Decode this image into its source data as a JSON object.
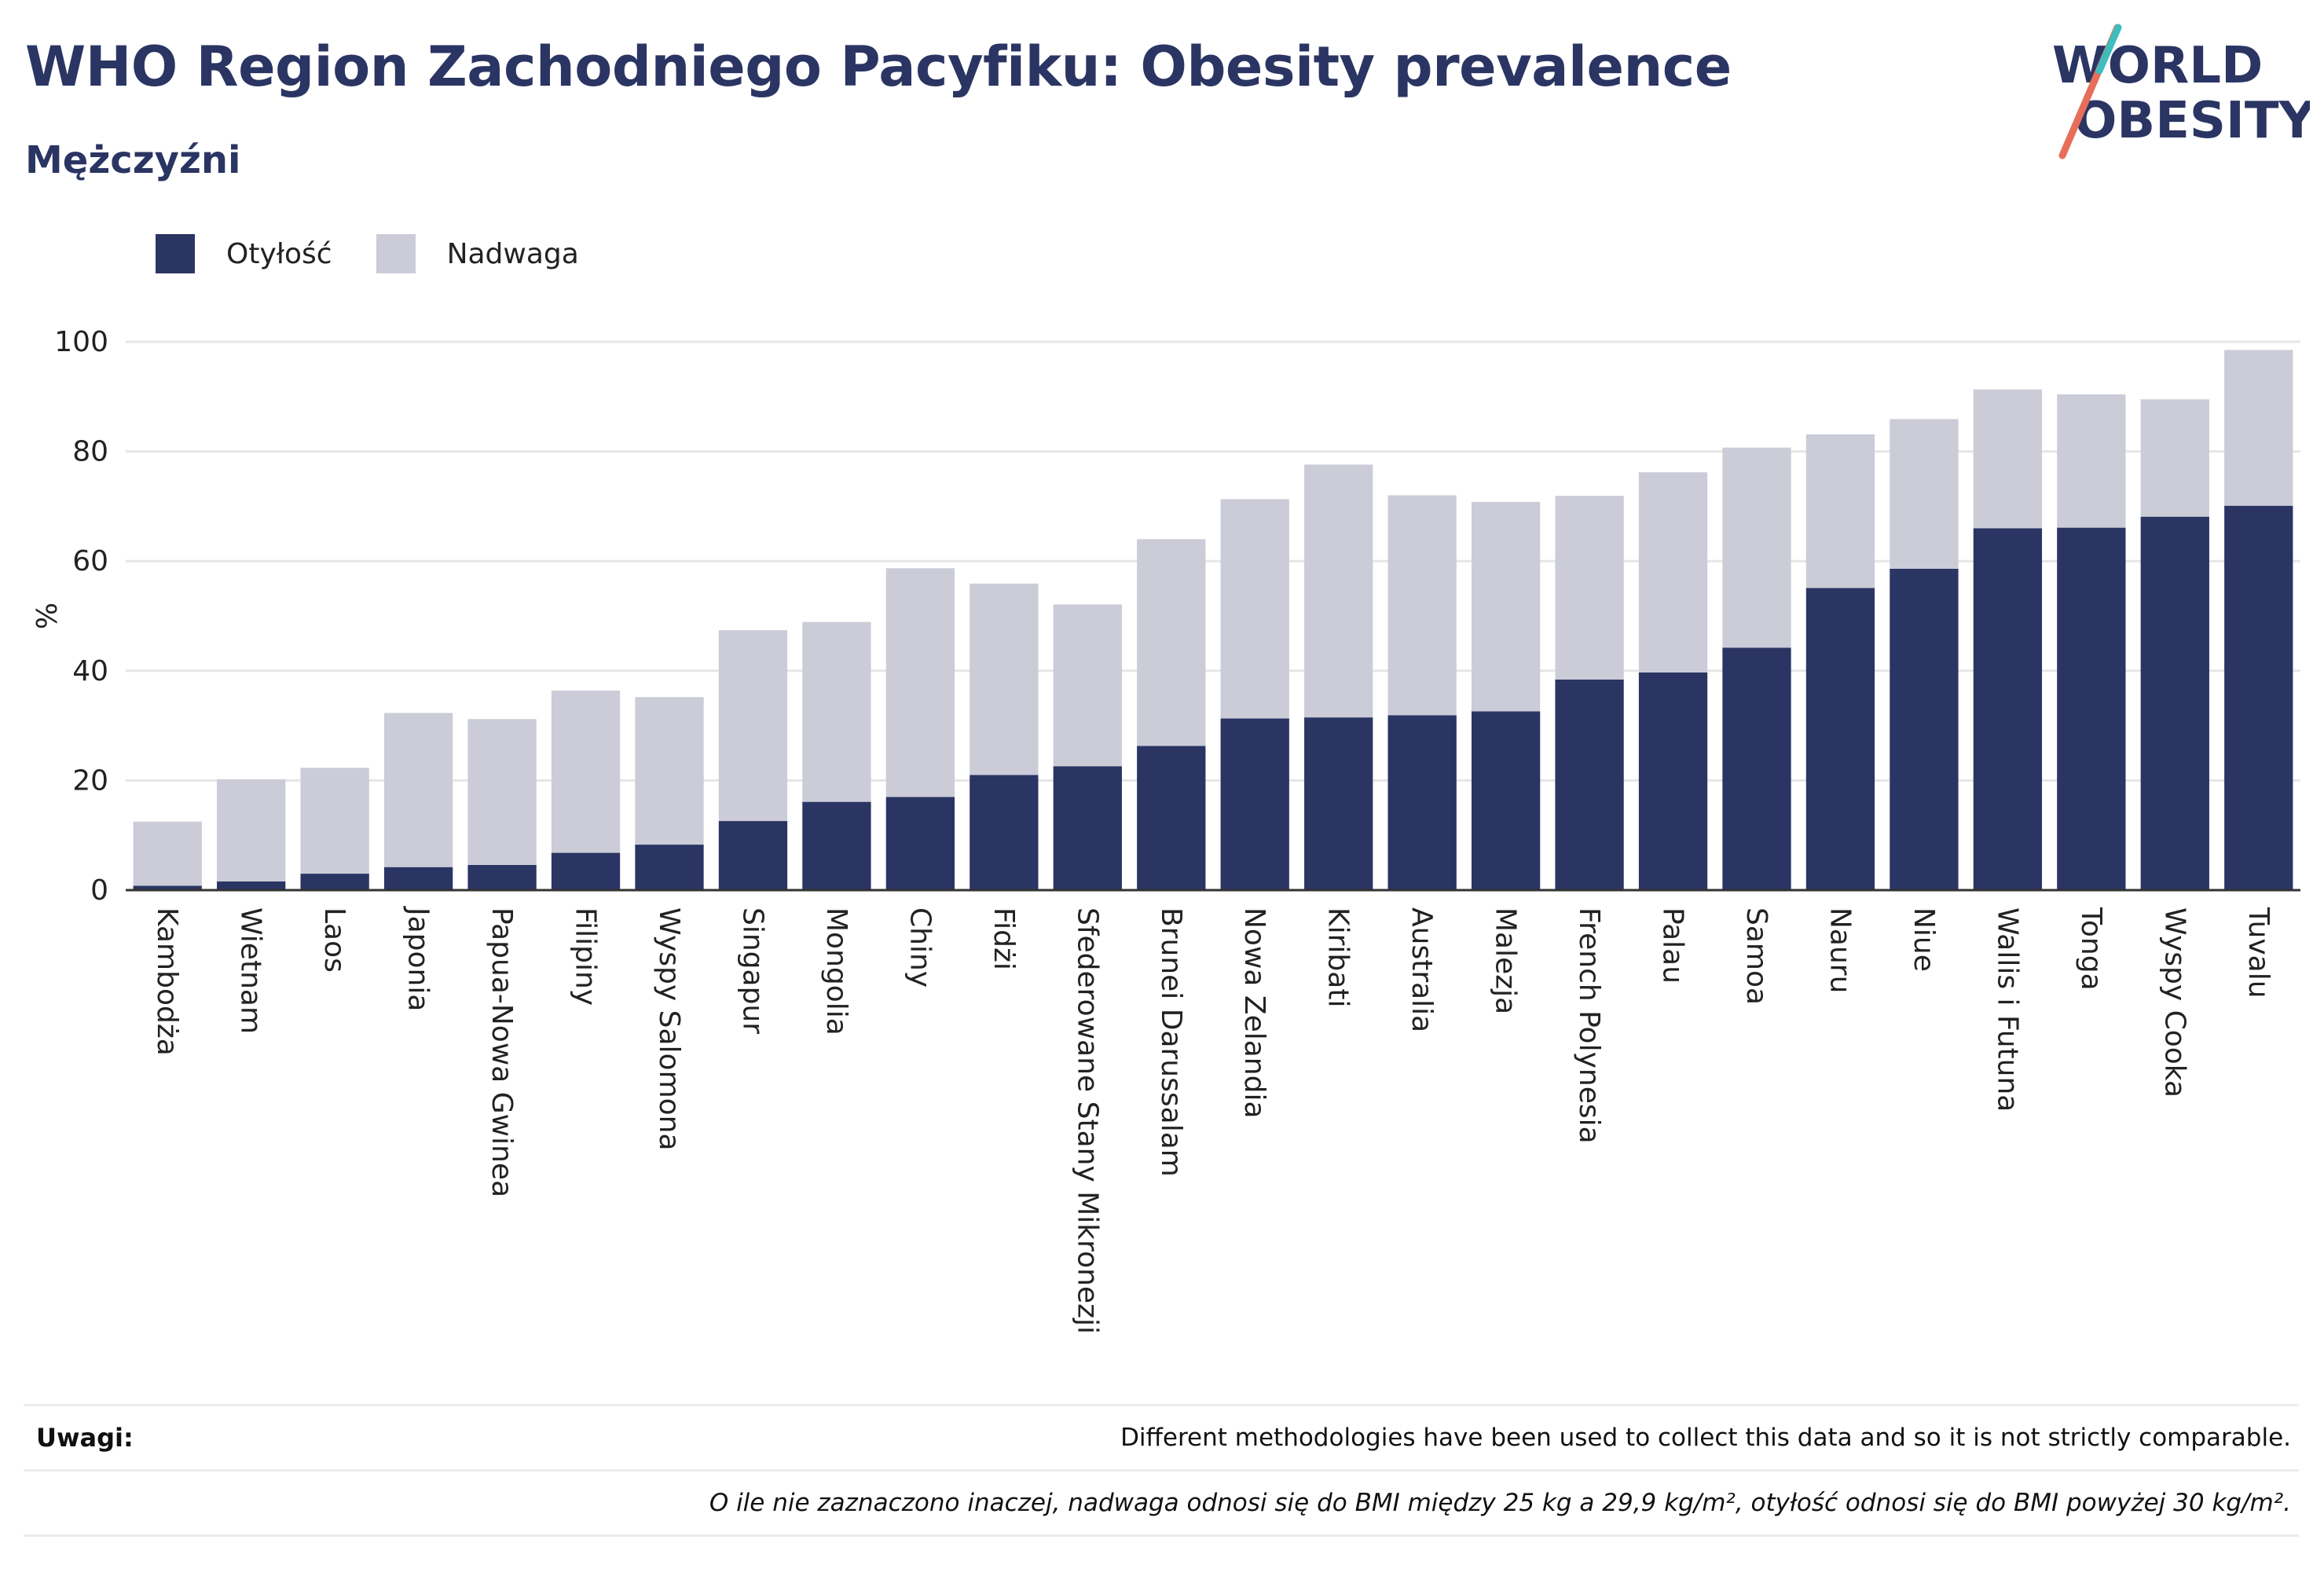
{
  "header": {
    "title": "WHO Region Zachodniego Pacyfiku: Obesity prevalence",
    "subtitle": "Mężczyźni"
  },
  "logo": {
    "line1": "WORLD",
    "line2": "OBESITY"
  },
  "colors": {
    "obesity": "#2b3563",
    "overweight": "#cbccd8",
    "accent_red": "#e76f5a",
    "accent_teal": "#3dbdbd"
  },
  "notes": {
    "label": "Uwagi:",
    "text": "Different methodologies have been used to collect this data and so it is not strictly comparable.",
    "definition": "O ile nie zaznaczono inaczej, nadwaga odnosi się do BMI między 25 kg a 29,9 kg/m², otyłość odnosi się do BMI powyżej 30 kg/m²."
  },
  "chart_data": {
    "type": "bar",
    "stacked": true,
    "ylabel": "%",
    "ylim": [
      0,
      100
    ],
    "yticks": [
      0,
      20,
      40,
      60,
      80,
      100
    ],
    "grid": true,
    "legend_position": "top-left",
    "categories": [
      "Kambodża",
      "Wietnam",
      "Laos",
      "Japonia",
      "Papua-Nowa Gwinea",
      "Filipiny",
      "Wyspy Salomona",
      "Singapur",
      "Mongolia",
      "Chiny",
      "Fidżi",
      "Sfederowane Stany Mikronezji",
      "Brunei Darussalam",
      "Nowa Zelandia",
      "Kiribati",
      "Australia",
      "Malezja",
      "French Polynesia",
      "Palau",
      "Samoa",
      "Nauru",
      "Niue",
      "Wallis i Futuna",
      "Tonga",
      "Wyspy Cooka",
      "Tuvalu"
    ],
    "series": [
      {
        "name": "Otyłość",
        "values": [
          0.8,
          1.6,
          3.0,
          4.2,
          4.6,
          6.8,
          8.3,
          12.6,
          16.1,
          17.0,
          21.0,
          22.6,
          26.3,
          31.3,
          31.5,
          31.9,
          32.6,
          38.4,
          39.7,
          44.2,
          55.1,
          58.6,
          66.0,
          66.1,
          68.1,
          70.1
        ]
      },
      {
        "name": "Nadwaga",
        "values": [
          11.7,
          18.6,
          19.3,
          28.1,
          26.6,
          29.6,
          26.9,
          34.8,
          32.8,
          41.7,
          34.9,
          29.5,
          37.7,
          40.0,
          46.1,
          40.1,
          38.2,
          33.5,
          36.5,
          36.5,
          28.0,
          27.3,
          25.3,
          24.3,
          21.4,
          28.4
        ]
      }
    ]
  }
}
